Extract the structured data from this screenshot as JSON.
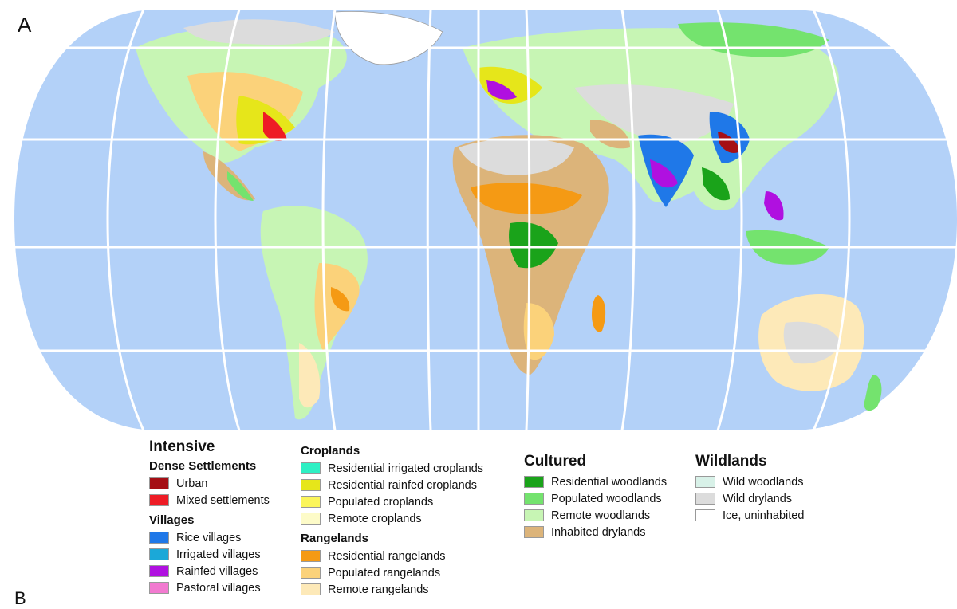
{
  "panel_label": "A",
  "panel_label_next": "B",
  "legend": {
    "intensive": {
      "heading": "Intensive",
      "dense_settlements": {
        "heading": "Dense Settlements",
        "items": [
          {
            "label": "Urban",
            "color": "#a50f15"
          },
          {
            "label": "Mixed settlements",
            "color": "#ee1c25"
          }
        ]
      },
      "villages": {
        "heading": "Villages",
        "items": [
          {
            "label": "Rice villages",
            "color": "#1f78e8"
          },
          {
            "label": "Irrigated villages",
            "color": "#1ba8d8"
          },
          {
            "label": "Rainfed villages",
            "color": "#b010e0"
          },
          {
            "label": "Pastoral villages",
            "color": "#f27ad0"
          }
        ]
      }
    },
    "croplands": {
      "heading": "Croplands",
      "items": [
        {
          "label": "Residential irrigated croplands",
          "color": "#2ef0c4"
        },
        {
          "label": "Residential rainfed croplands",
          "color": "#e6e61a"
        },
        {
          "label": "Populated croplands",
          "color": "#fbf55a"
        },
        {
          "label": "Remote croplands",
          "color": "#fdfbc8"
        }
      ]
    },
    "rangelands": {
      "heading": "Rangelands",
      "items": [
        {
          "label": "Residential rangelands",
          "color": "#f59a14"
        },
        {
          "label": "Populated rangelands",
          "color": "#fbd27a"
        },
        {
          "label": "Remote rangelands",
          "color": "#fde9b8"
        }
      ]
    },
    "cultured": {
      "heading": "Cultured",
      "items": [
        {
          "label": "Residential woodlands",
          "color": "#1aa31a"
        },
        {
          "label": "Populated woodlands",
          "color": "#74e36e"
        },
        {
          "label": "Remote woodlands",
          "color": "#c7f5b4"
        },
        {
          "label": "Inhabited drylands",
          "color": "#dcb47a"
        }
      ]
    },
    "wildlands": {
      "heading": "Wildlands",
      "items": [
        {
          "label": "Wild woodlands",
          "color": "#d8f1e8"
        },
        {
          "label": "Wild drylands",
          "color": "#dcdcdc"
        },
        {
          "label": "Ice, uninhabited",
          "color": "#ffffff"
        }
      ]
    }
  }
}
